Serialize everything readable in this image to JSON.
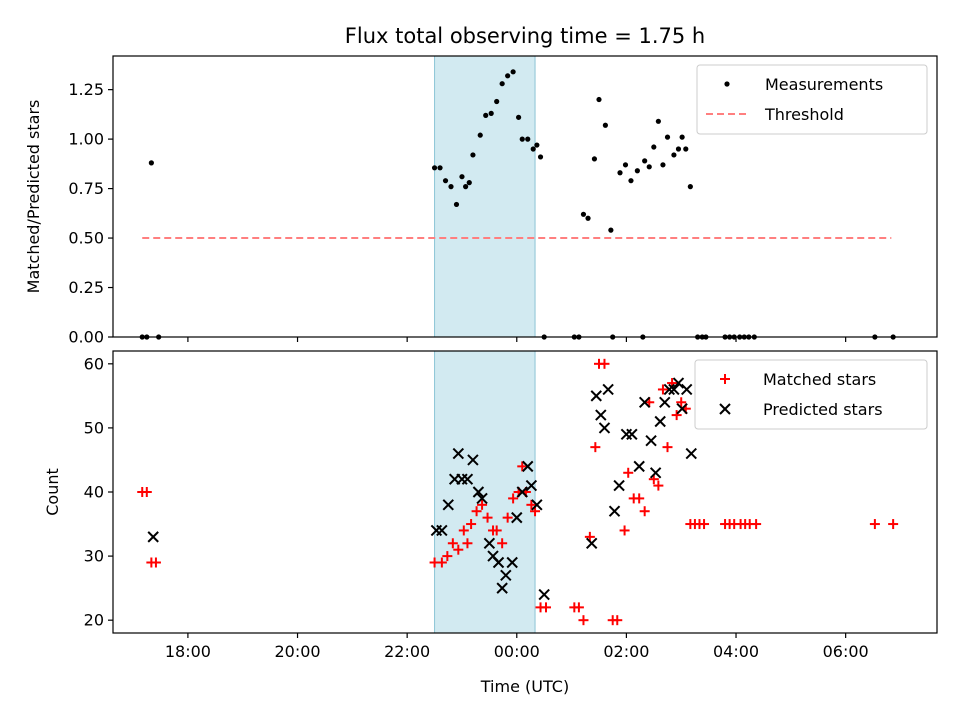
{
  "title": "Flux total observing time = 1.75 h",
  "xlabel": "Time (UTC)",
  "x_tick_labels": [
    "18:00",
    "20:00",
    "22:00",
    "00:00",
    "02:00",
    "04:00",
    "06:00"
  ],
  "colors": {
    "measurements": "#000000",
    "threshold": "#ff7f7f",
    "matched": "#ff0000",
    "predicted": "#000000",
    "highlight": "#add8e6"
  },
  "chart_data": [
    {
      "type": "scatter",
      "ylabel": "Matched/Predicted stars",
      "xlim": [
        "16:38",
        "07:40"
      ],
      "ylim": [
        0,
        1.42
      ],
      "y_ticks": [
        "0.00",
        "0.25",
        "0.50",
        "0.75",
        "1.00",
        "1.25"
      ],
      "highlight_span": [
        "22:30",
        "00:20"
      ],
      "legend": {
        "position": "top-right",
        "entries": [
          "Measurements",
          "Threshold"
        ]
      },
      "threshold": {
        "name": "Threshold",
        "y": 0.5,
        "x_range": [
          "17:10",
          "06:50"
        ]
      },
      "series": [
        {
          "name": "Measurements",
          "marker": "dot",
          "points": [
            [
              "17:10",
              0
            ],
            [
              "17:15",
              0
            ],
            [
              "17:20",
              0.88
            ],
            [
              "17:28",
              0
            ],
            [
              "22:30",
              0.855
            ],
            [
              "22:36",
              0.855
            ],
            [
              "22:42",
              0.79
            ],
            [
              "22:48",
              0.76
            ],
            [
              "22:54",
              0.67
            ],
            [
              "23:00",
              0.81
            ],
            [
              "23:04",
              0.76
            ],
            [
              "23:08",
              0.78
            ],
            [
              "23:12",
              0.92
            ],
            [
              "23:20",
              1.02
            ],
            [
              "23:26",
              1.12
            ],
            [
              "23:32",
              1.13
            ],
            [
              "23:38",
              1.19
            ],
            [
              "23:44",
              1.28
            ],
            [
              "23:50",
              1.32
            ],
            [
              "23:56",
              1.34
            ],
            [
              "00:02",
              1.11
            ],
            [
              "00:06",
              1.0
            ],
            [
              "00:12",
              1.0
            ],
            [
              "00:18",
              0.95
            ],
            [
              "00:22",
              0.97
            ],
            [
              "00:26",
              0.91
            ],
            [
              "00:30",
              0
            ],
            [
              "01:03",
              0
            ],
            [
              "01:08",
              0
            ],
            [
              "01:13",
              0.62
            ],
            [
              "01:18",
              0.6
            ],
            [
              "01:25",
              0.9
            ],
            [
              "01:30",
              1.2
            ],
            [
              "01:37",
              1.07
            ],
            [
              "01:43",
              0.54
            ],
            [
              "01:45",
              0
            ],
            [
              "01:53",
              0.83
            ],
            [
              "01:59",
              0.87
            ],
            [
              "02:05",
              0.79
            ],
            [
              "02:12",
              0.84
            ],
            [
              "02:18",
              0
            ],
            [
              "02:20",
              0.89
            ],
            [
              "02:25",
              0.86
            ],
            [
              "02:30",
              0.96
            ],
            [
              "02:35",
              1.09
            ],
            [
              "02:40",
              0.87
            ],
            [
              "02:45",
              1.01
            ],
            [
              "02:52",
              0.92
            ],
            [
              "02:57",
              0.95
            ],
            [
              "03:01",
              1.01
            ],
            [
              "03:05",
              0.95
            ],
            [
              "03:10",
              0.76
            ],
            [
              "03:18",
              0
            ],
            [
              "03:23",
              0
            ],
            [
              "03:27",
              0
            ],
            [
              "03:48",
              0
            ],
            [
              "03:53",
              0
            ],
            [
              "03:58",
              0
            ],
            [
              "04:04",
              0
            ],
            [
              "04:09",
              0
            ],
            [
              "04:14",
              0
            ],
            [
              "04:20",
              0
            ],
            [
              "06:32",
              0
            ],
            [
              "06:52",
              0
            ]
          ]
        }
      ]
    },
    {
      "type": "scatter",
      "ylabel": "Count",
      "xlim": [
        "16:38",
        "07:40"
      ],
      "ylim": [
        18,
        62
      ],
      "y_ticks": [
        "20",
        "30",
        "40",
        "50",
        "60"
      ],
      "highlight_span": [
        "22:30",
        "00:20"
      ],
      "legend": {
        "position": "top-right",
        "entries": [
          "Matched stars",
          "Predicted stars"
        ]
      },
      "series": [
        {
          "name": "Matched stars",
          "marker": "plus",
          "points": [
            [
              "17:10",
              40
            ],
            [
              "17:15",
              40
            ],
            [
              "17:20",
              29
            ],
            [
              "17:25",
              29
            ],
            [
              "22:30",
              29
            ],
            [
              "22:38",
              29
            ],
            [
              "22:44",
              30
            ],
            [
              "22:50",
              32
            ],
            [
              "22:56",
              31
            ],
            [
              "23:02",
              34
            ],
            [
              "23:06",
              32
            ],
            [
              "23:10",
              35
            ],
            [
              "23:16",
              37
            ],
            [
              "23:22",
              38
            ],
            [
              "23:28",
              36
            ],
            [
              "23:34",
              34
            ],
            [
              "23:38",
              34
            ],
            [
              "23:44",
              32
            ],
            [
              "23:50",
              36
            ],
            [
              "23:56",
              39
            ],
            [
              "00:02",
              40
            ],
            [
              "00:06",
              44
            ],
            [
              "00:10",
              40
            ],
            [
              "00:16",
              38
            ],
            [
              "00:20",
              37
            ],
            [
              "00:26",
              22
            ],
            [
              "00:32",
              22
            ],
            [
              "01:03",
              22
            ],
            [
              "01:08",
              22
            ],
            [
              "01:13",
              20
            ],
            [
              "01:20",
              33
            ],
            [
              "01:26",
              47
            ],
            [
              "01:30",
              60
            ],
            [
              "01:36",
              60
            ],
            [
              "01:45",
              20
            ],
            [
              "01:50",
              20
            ],
            [
              "01:58",
              34
            ],
            [
              "02:02",
              43
            ],
            [
              "02:08",
              39
            ],
            [
              "02:14",
              39
            ],
            [
              "02:20",
              37
            ],
            [
              "02:25",
              54
            ],
            [
              "02:30",
              42
            ],
            [
              "02:35",
              41
            ],
            [
              "02:40",
              56
            ],
            [
              "02:45",
              47
            ],
            [
              "02:50",
              57
            ],
            [
              "02:55",
              52
            ],
            [
              "03:00",
              54
            ],
            [
              "03:05",
              53
            ],
            [
              "03:10",
              35
            ],
            [
              "03:15",
              35
            ],
            [
              "03:20",
              35
            ],
            [
              "03:25",
              35
            ],
            [
              "03:48",
              35
            ],
            [
              "03:53",
              35
            ],
            [
              "03:58",
              35
            ],
            [
              "04:05",
              35
            ],
            [
              "04:10",
              35
            ],
            [
              "04:15",
              35
            ],
            [
              "04:22",
              35
            ],
            [
              "06:32",
              35
            ],
            [
              "06:52",
              35
            ]
          ]
        },
        {
          "name": "Predicted stars",
          "marker": "cross",
          "points": [
            [
              "17:22",
              33
            ],
            [
              "22:32",
              34
            ],
            [
              "22:38",
              34
            ],
            [
              "22:45",
              38
            ],
            [
              "22:52",
              42
            ],
            [
              "22:56",
              46
            ],
            [
              "23:00",
              42
            ],
            [
              "23:06",
              42
            ],
            [
              "23:12",
              45
            ],
            [
              "23:18",
              40
            ],
            [
              "23:22",
              39
            ],
            [
              "23:30",
              32
            ],
            [
              "23:34",
              30
            ],
            [
              "23:40",
              29
            ],
            [
              "23:44",
              25
            ],
            [
              "23:48",
              27
            ],
            [
              "23:55",
              29
            ],
            [
              "00:00",
              36
            ],
            [
              "00:06",
              40
            ],
            [
              "00:12",
              44
            ],
            [
              "00:16",
              41
            ],
            [
              "00:22",
              38
            ],
            [
              "00:30",
              24
            ],
            [
              "01:22",
              32
            ],
            [
              "01:27",
              55
            ],
            [
              "01:32",
              52
            ],
            [
              "01:36",
              50
            ],
            [
              "01:40",
              56
            ],
            [
              "01:47",
              37
            ],
            [
              "01:52",
              41
            ],
            [
              "02:00",
              49
            ],
            [
              "02:06",
              49
            ],
            [
              "02:14",
              44
            ],
            [
              "02:20",
              54
            ],
            [
              "02:27",
              48
            ],
            [
              "02:32",
              43
            ],
            [
              "02:37",
              51
            ],
            [
              "02:42",
              54
            ],
            [
              "02:47",
              56
            ],
            [
              "02:52",
              56
            ],
            [
              "02:57",
              57
            ],
            [
              "03:01",
              53
            ],
            [
              "03:06",
              56
            ],
            [
              "03:11",
              46
            ]
          ]
        }
      ]
    }
  ]
}
